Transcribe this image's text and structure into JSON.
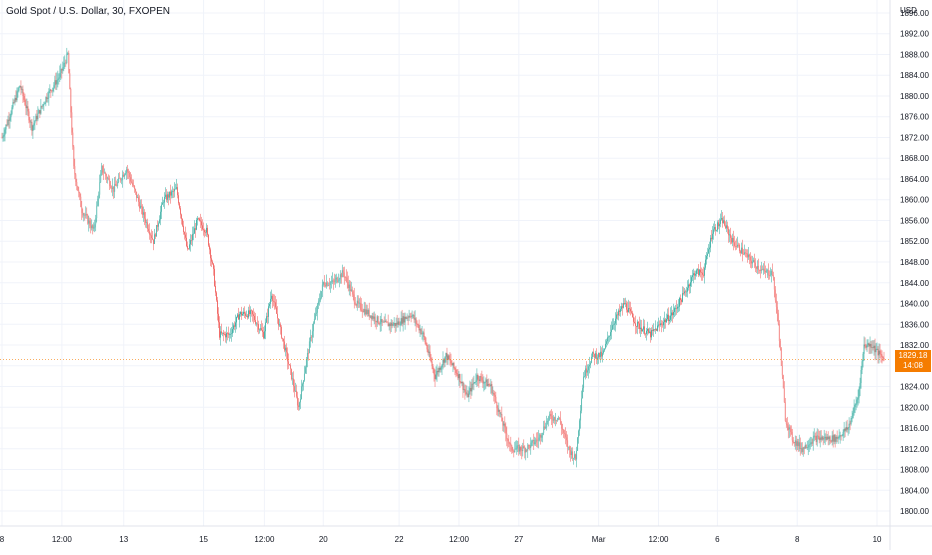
{
  "chart_data": {
    "type": "candlestick",
    "title": "Gold Spot / U.S. Dollar, 30, FXOPEN",
    "currency": "USD",
    "y_ticks": [
      1800,
      1804,
      1808,
      1812,
      1816,
      1820,
      1824,
      1828,
      1832,
      1836,
      1840,
      1844,
      1848,
      1852,
      1856,
      1860,
      1864,
      1868,
      1872,
      1876,
      1880,
      1884,
      1888,
      1892,
      1896
    ],
    "y_tick_labels": [
      "1800.00",
      "1804.00",
      "1808.00",
      "1812.00",
      "1816.00",
      "1820.00",
      "1824.00",
      "1828.00",
      "1832.00",
      "1836.00",
      "1840.00",
      "1844.00",
      "1848.00",
      "1852.00",
      "1856.00",
      "1860.00",
      "1864.00",
      "1868.00",
      "1872.00",
      "1876.00",
      "1880.00",
      "1884.00",
      "1888.00",
      "1892.00",
      "1896.00"
    ],
    "ylim": [
      1797.5,
      1898.5
    ],
    "x_ticks": [
      "8",
      "12:00",
      "13",
      "15",
      "12:00",
      "20",
      "22",
      "12:00",
      "27",
      "Mar",
      "12:00",
      "6",
      "8",
      "10"
    ],
    "x_tick_index": [
      0,
      60,
      122,
      202,
      263,
      322,
      398,
      458,
      518,
      598,
      658,
      717,
      797,
      877
    ],
    "x_count": 885,
    "path_anchors": [
      [
        0,
        1872
      ],
      [
        18,
        1882
      ],
      [
        30,
        1874
      ],
      [
        45,
        1880
      ],
      [
        58,
        1884
      ],
      [
        66,
        1888
      ],
      [
        72,
        1866
      ],
      [
        80,
        1858
      ],
      [
        92,
        1854
      ],
      [
        100,
        1866
      ],
      [
        112,
        1862
      ],
      [
        125,
        1866
      ],
      [
        140,
        1858
      ],
      [
        152,
        1852
      ],
      [
        162,
        1860
      ],
      [
        175,
        1862
      ],
      [
        186,
        1850
      ],
      [
        196,
        1856
      ],
      [
        205,
        1854
      ],
      [
        212,
        1846
      ],
      [
        218,
        1834
      ],
      [
        228,
        1834
      ],
      [
        238,
        1838
      ],
      [
        250,
        1838
      ],
      [
        262,
        1834
      ],
      [
        270,
        1842
      ],
      [
        280,
        1834
      ],
      [
        290,
        1826
      ],
      [
        297,
        1820
      ],
      [
        304,
        1828
      ],
      [
        312,
        1836
      ],
      [
        322,
        1844
      ],
      [
        332,
        1844
      ],
      [
        342,
        1846
      ],
      [
        355,
        1840
      ],
      [
        368,
        1838
      ],
      [
        382,
        1836
      ],
      [
        395,
        1836
      ],
      [
        410,
        1838
      ],
      [
        422,
        1834
      ],
      [
        434,
        1826
      ],
      [
        445,
        1830
      ],
      [
        458,
        1826
      ],
      [
        466,
        1822
      ],
      [
        476,
        1826
      ],
      [
        490,
        1824
      ],
      [
        500,
        1818
      ],
      [
        510,
        1812
      ],
      [
        525,
        1812
      ],
      [
        538,
        1814
      ],
      [
        548,
        1818
      ],
      [
        558,
        1818
      ],
      [
        568,
        1812
      ],
      [
        575,
        1810
      ],
      [
        583,
        1826
      ],
      [
        592,
        1830
      ],
      [
        602,
        1830
      ],
      [
        612,
        1836
      ],
      [
        624,
        1840
      ],
      [
        636,
        1836
      ],
      [
        650,
        1834
      ],
      [
        660,
        1836
      ],
      [
        672,
        1838
      ],
      [
        684,
        1842
      ],
      [
        694,
        1846
      ],
      [
        703,
        1846
      ],
      [
        712,
        1854
      ],
      [
        722,
        1856
      ],
      [
        732,
        1852
      ],
      [
        742,
        1850
      ],
      [
        752,
        1848
      ],
      [
        764,
        1846
      ],
      [
        772,
        1846
      ],
      [
        778,
        1836
      ],
      [
        785,
        1818
      ],
      [
        792,
        1814
      ],
      [
        802,
        1812
      ],
      [
        814,
        1814
      ],
      [
        824,
        1814
      ],
      [
        836,
        1814
      ],
      [
        848,
        1816
      ],
      [
        858,
        1822
      ],
      [
        864,
        1832
      ],
      [
        872,
        1832
      ],
      [
        880,
        1830
      ],
      [
        885,
        1829.18
      ]
    ],
    "last_price": 1829.18,
    "last_price_label": "1829.18",
    "countdown_label": "14:08",
    "colors": {
      "up": "#26a69a",
      "down": "#ef5350",
      "price_tag": "#f57c00",
      "grid": "#f0f3fa",
      "text": "#131722"
    },
    "grid": true
  }
}
